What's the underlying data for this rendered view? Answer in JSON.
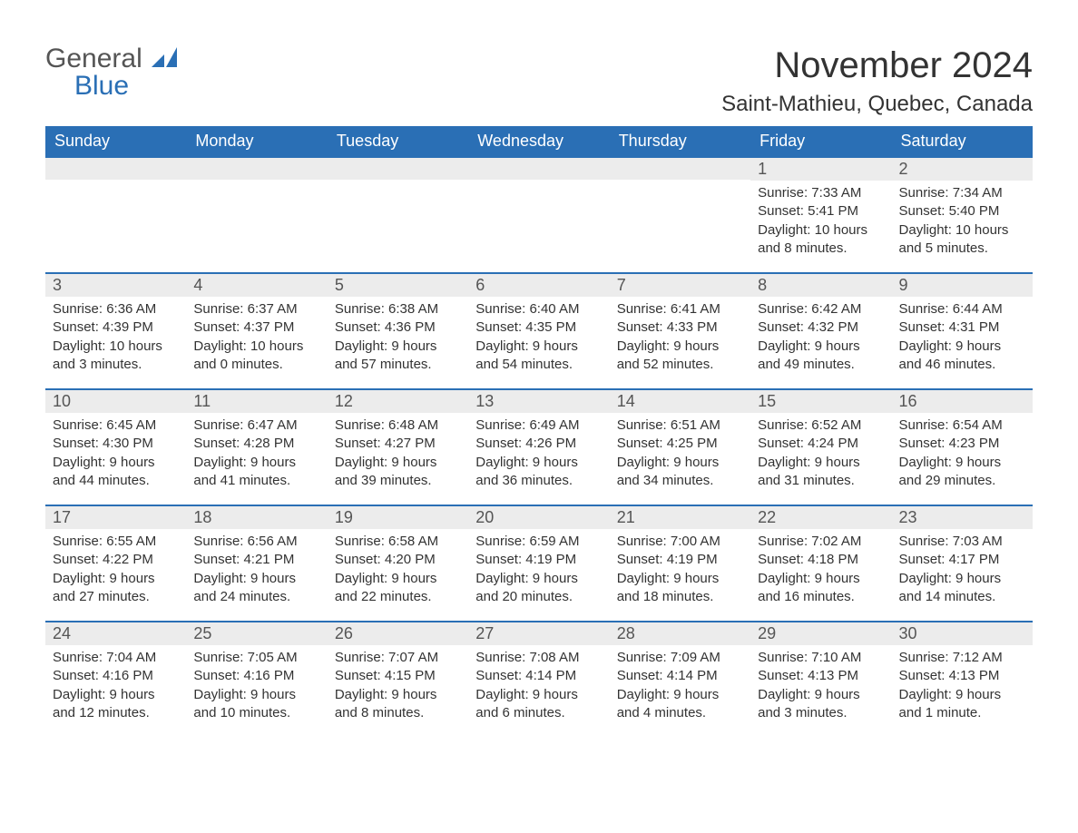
{
  "logo": {
    "text1": "General",
    "text2": "Blue",
    "icon_color": "#2a6fb5",
    "text_color": "#555555"
  },
  "title": "November 2024",
  "location": "Saint-Mathieu, Quebec, Canada",
  "colors": {
    "header_bg": "#2a6fb5",
    "header_text": "#ffffff",
    "daynum_bg": "#ececec",
    "body_text": "#333333",
    "row_border": "#2a6fb5"
  },
  "day_headers": [
    "Sunday",
    "Monday",
    "Tuesday",
    "Wednesday",
    "Thursday",
    "Friday",
    "Saturday"
  ],
  "weeks": [
    [
      null,
      null,
      null,
      null,
      null,
      {
        "n": "1",
        "sunrise": "Sunrise: 7:33 AM",
        "sunset": "Sunset: 5:41 PM",
        "daylight": "Daylight: 10 hours and 8 minutes."
      },
      {
        "n": "2",
        "sunrise": "Sunrise: 7:34 AM",
        "sunset": "Sunset: 5:40 PM",
        "daylight": "Daylight: 10 hours and 5 minutes."
      }
    ],
    [
      {
        "n": "3",
        "sunrise": "Sunrise: 6:36 AM",
        "sunset": "Sunset: 4:39 PM",
        "daylight": "Daylight: 10 hours and 3 minutes."
      },
      {
        "n": "4",
        "sunrise": "Sunrise: 6:37 AM",
        "sunset": "Sunset: 4:37 PM",
        "daylight": "Daylight: 10 hours and 0 minutes."
      },
      {
        "n": "5",
        "sunrise": "Sunrise: 6:38 AM",
        "sunset": "Sunset: 4:36 PM",
        "daylight": "Daylight: 9 hours and 57 minutes."
      },
      {
        "n": "6",
        "sunrise": "Sunrise: 6:40 AM",
        "sunset": "Sunset: 4:35 PM",
        "daylight": "Daylight: 9 hours and 54 minutes."
      },
      {
        "n": "7",
        "sunrise": "Sunrise: 6:41 AM",
        "sunset": "Sunset: 4:33 PM",
        "daylight": "Daylight: 9 hours and 52 minutes."
      },
      {
        "n": "8",
        "sunrise": "Sunrise: 6:42 AM",
        "sunset": "Sunset: 4:32 PM",
        "daylight": "Daylight: 9 hours and 49 minutes."
      },
      {
        "n": "9",
        "sunrise": "Sunrise: 6:44 AM",
        "sunset": "Sunset: 4:31 PM",
        "daylight": "Daylight: 9 hours and 46 minutes."
      }
    ],
    [
      {
        "n": "10",
        "sunrise": "Sunrise: 6:45 AM",
        "sunset": "Sunset: 4:30 PM",
        "daylight": "Daylight: 9 hours and 44 minutes."
      },
      {
        "n": "11",
        "sunrise": "Sunrise: 6:47 AM",
        "sunset": "Sunset: 4:28 PM",
        "daylight": "Daylight: 9 hours and 41 minutes."
      },
      {
        "n": "12",
        "sunrise": "Sunrise: 6:48 AM",
        "sunset": "Sunset: 4:27 PM",
        "daylight": "Daylight: 9 hours and 39 minutes."
      },
      {
        "n": "13",
        "sunrise": "Sunrise: 6:49 AM",
        "sunset": "Sunset: 4:26 PM",
        "daylight": "Daylight: 9 hours and 36 minutes."
      },
      {
        "n": "14",
        "sunrise": "Sunrise: 6:51 AM",
        "sunset": "Sunset: 4:25 PM",
        "daylight": "Daylight: 9 hours and 34 minutes."
      },
      {
        "n": "15",
        "sunrise": "Sunrise: 6:52 AM",
        "sunset": "Sunset: 4:24 PM",
        "daylight": "Daylight: 9 hours and 31 minutes."
      },
      {
        "n": "16",
        "sunrise": "Sunrise: 6:54 AM",
        "sunset": "Sunset: 4:23 PM",
        "daylight": "Daylight: 9 hours and 29 minutes."
      }
    ],
    [
      {
        "n": "17",
        "sunrise": "Sunrise: 6:55 AM",
        "sunset": "Sunset: 4:22 PM",
        "daylight": "Daylight: 9 hours and 27 minutes."
      },
      {
        "n": "18",
        "sunrise": "Sunrise: 6:56 AM",
        "sunset": "Sunset: 4:21 PM",
        "daylight": "Daylight: 9 hours and 24 minutes."
      },
      {
        "n": "19",
        "sunrise": "Sunrise: 6:58 AM",
        "sunset": "Sunset: 4:20 PM",
        "daylight": "Daylight: 9 hours and 22 minutes."
      },
      {
        "n": "20",
        "sunrise": "Sunrise: 6:59 AM",
        "sunset": "Sunset: 4:19 PM",
        "daylight": "Daylight: 9 hours and 20 minutes."
      },
      {
        "n": "21",
        "sunrise": "Sunrise: 7:00 AM",
        "sunset": "Sunset: 4:19 PM",
        "daylight": "Daylight: 9 hours and 18 minutes."
      },
      {
        "n": "22",
        "sunrise": "Sunrise: 7:02 AM",
        "sunset": "Sunset: 4:18 PM",
        "daylight": "Daylight: 9 hours and 16 minutes."
      },
      {
        "n": "23",
        "sunrise": "Sunrise: 7:03 AM",
        "sunset": "Sunset: 4:17 PM",
        "daylight": "Daylight: 9 hours and 14 minutes."
      }
    ],
    [
      {
        "n": "24",
        "sunrise": "Sunrise: 7:04 AM",
        "sunset": "Sunset: 4:16 PM",
        "daylight": "Daylight: 9 hours and 12 minutes."
      },
      {
        "n": "25",
        "sunrise": "Sunrise: 7:05 AM",
        "sunset": "Sunset: 4:16 PM",
        "daylight": "Daylight: 9 hours and 10 minutes."
      },
      {
        "n": "26",
        "sunrise": "Sunrise: 7:07 AM",
        "sunset": "Sunset: 4:15 PM",
        "daylight": "Daylight: 9 hours and 8 minutes."
      },
      {
        "n": "27",
        "sunrise": "Sunrise: 7:08 AM",
        "sunset": "Sunset: 4:14 PM",
        "daylight": "Daylight: 9 hours and 6 minutes."
      },
      {
        "n": "28",
        "sunrise": "Sunrise: 7:09 AM",
        "sunset": "Sunset: 4:14 PM",
        "daylight": "Daylight: 9 hours and 4 minutes."
      },
      {
        "n": "29",
        "sunrise": "Sunrise: 7:10 AM",
        "sunset": "Sunset: 4:13 PM",
        "daylight": "Daylight: 9 hours and 3 minutes."
      },
      {
        "n": "30",
        "sunrise": "Sunrise: 7:12 AM",
        "sunset": "Sunset: 4:13 PM",
        "daylight": "Daylight: 9 hours and 1 minute."
      }
    ]
  ]
}
